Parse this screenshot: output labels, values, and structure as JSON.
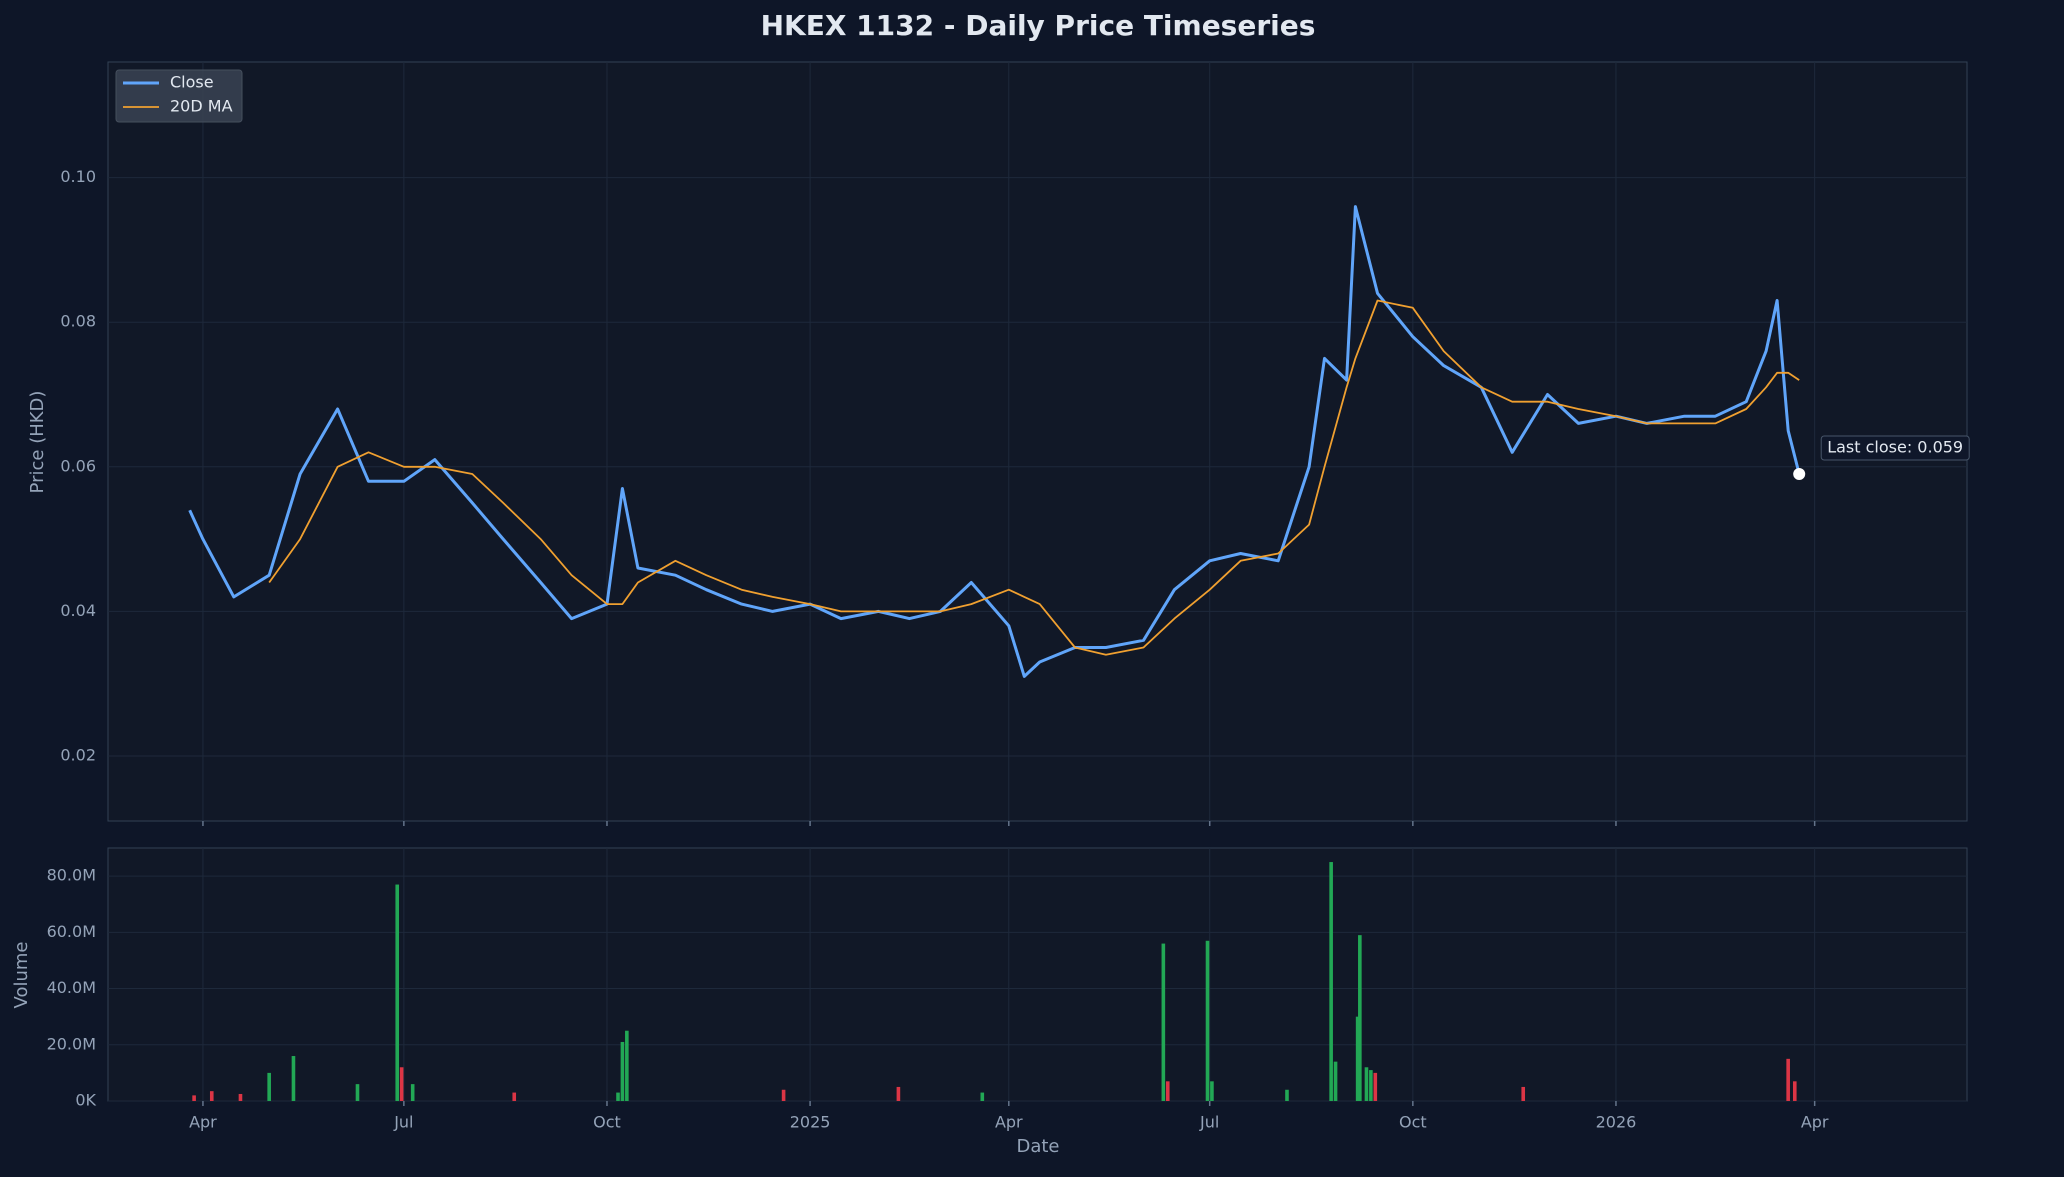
{
  "chart_data": [
    {
      "type": "line",
      "title": "HKEX 1132 - Daily Price Timeseries",
      "y_label": "Price (HKD)",
      "x": [
        "2024-03-26",
        "2024-04-01",
        "2024-04-15",
        "2024-05-01",
        "2024-05-15",
        "2024-06-01",
        "2024-06-15",
        "2024-07-01",
        "2024-07-15",
        "2024-08-01",
        "2024-08-15",
        "2024-09-01",
        "2024-09-15",
        "2024-10-01",
        "2024-10-08",
        "2024-10-15",
        "2024-11-01",
        "2024-11-15",
        "2024-12-01",
        "2024-12-15",
        "2025-01-01",
        "2025-01-15",
        "2025-02-01",
        "2025-02-15",
        "2025-03-01",
        "2025-03-15",
        "2025-04-01",
        "2025-04-08",
        "2025-04-15",
        "2025-05-01",
        "2025-05-15",
        "2025-06-01",
        "2025-06-15",
        "2025-07-01",
        "2025-07-15",
        "2025-08-01",
        "2025-08-15",
        "2025-08-22",
        "2025-09-01",
        "2025-09-05",
        "2025-09-15",
        "2025-10-01",
        "2025-10-15",
        "2025-11-01",
        "2025-11-15",
        "2025-12-01",
        "2025-12-15",
        "2026-01-01",
        "2026-01-15",
        "2026-02-01",
        "2026-02-15",
        "2026-03-01",
        "2026-03-10",
        "2026-03-15",
        "2026-03-20",
        "2026-03-25"
      ],
      "series": [
        {
          "name": "Close",
          "color": "#60a5fa",
          "width": 3,
          "values": [
            0.054,
            0.05,
            0.042,
            0.045,
            0.059,
            0.068,
            0.058,
            0.058,
            0.061,
            0.055,
            0.05,
            0.044,
            0.039,
            0.041,
            0.057,
            0.046,
            0.045,
            0.043,
            0.041,
            0.04,
            0.041,
            0.039,
            0.04,
            0.039,
            0.04,
            0.044,
            0.038,
            0.031,
            0.033,
            0.035,
            0.035,
            0.036,
            0.043,
            0.047,
            0.048,
            0.047,
            0.06,
            0.075,
            0.072,
            0.096,
            0.084,
            0.078,
            0.074,
            0.071,
            0.062,
            0.07,
            0.066,
            0.067,
            0.066,
            0.067,
            0.067,
            0.069,
            0.076,
            0.083,
            0.065,
            0.059
          ]
        },
        {
          "name": "20D MA",
          "color": "#f0a030",
          "width": 1.8,
          "values": [
            null,
            null,
            null,
            0.044,
            0.05,
            0.06,
            0.062,
            0.06,
            0.06,
            0.059,
            0.055,
            0.05,
            0.045,
            0.041,
            0.041,
            0.044,
            0.047,
            0.045,
            0.043,
            0.042,
            0.041,
            0.04,
            0.04,
            0.04,
            0.04,
            0.041,
            0.043,
            0.042,
            0.041,
            0.035,
            0.034,
            0.035,
            0.039,
            0.043,
            0.047,
            0.048,
            0.052,
            0.06,
            0.071,
            0.075,
            0.083,
            0.082,
            0.076,
            0.071,
            0.069,
            0.069,
            0.068,
            0.067,
            0.066,
            0.066,
            0.066,
            0.068,
            0.071,
            0.073,
            0.073,
            0.072
          ]
        }
      ],
      "annotation": "Last close: 0.059",
      "xlim": [
        "2024-02-18",
        "2026-06-09"
      ],
      "ylim": [
        0.011,
        0.116
      ],
      "yticks": [
        0.02,
        0.04,
        0.06,
        0.08,
        {
          "value": 0.1,
          "label": "0.10"
        }
      ],
      "grid": true,
      "legend": "upper left"
    },
    {
      "type": "bar",
      "y_label": "Volume",
      "x_label": "Date",
      "x": [
        "2024-03-28",
        "2024-04-05",
        "2024-04-18",
        "2024-05-01",
        "2024-05-12",
        "2024-06-10",
        "2024-06-28",
        "2024-06-30",
        "2024-07-05",
        "2024-08-20",
        "2024-10-06",
        "2024-10-08",
        "2024-10-10",
        "2024-12-20",
        "2025-02-10",
        "2025-03-20",
        "2025-06-10",
        "2025-06-12",
        "2025-06-30",
        "2025-07-02",
        "2025-08-05",
        "2025-08-25",
        "2025-08-27",
        "2025-09-06",
        "2025-09-07",
        "2025-09-10",
        "2025-09-12",
        "2025-09-14",
        "2025-11-20",
        "2026-03-20",
        "2026-03-23"
      ],
      "values": [
        2000000,
        3500000,
        2500000,
        10000000,
        16000000,
        6000000,
        77000000,
        12000000,
        6000000,
        3000000,
        3000000,
        21000000,
        25000000,
        4000000,
        5000000,
        3000000,
        56000000,
        7000000,
        57000000,
        7000000,
        4000000,
        85000000,
        14000000,
        30000000,
        59000000,
        12000000,
        11000000,
        10000000,
        5000000,
        15000000,
        7000000
      ],
      "colors": [
        "#dc3545",
        "#dc3545",
        "#dc3545",
        "#22a855",
        "#22a855",
        "#22a855",
        "#22a855",
        "#dc3545",
        "#22a855",
        "#dc3545",
        "#22a855",
        "#22a855",
        "#22a855",
        "#dc3545",
        "#dc3545",
        "#22a855",
        "#22a855",
        "#dc3545",
        "#22a855",
        "#22a855",
        "#22a855",
        "#22a855",
        "#22a855",
        "#22a855",
        "#22a855",
        "#22a855",
        "#22a855",
        "#dc3545",
        "#dc3545",
        "#dc3545",
        "#dc3545"
      ],
      "xlim": [
        "2024-02-18",
        "2026-06-09"
      ],
      "xticks": [
        {
          "value": "2024-04-01",
          "label": "Apr"
        },
        {
          "value": "2024-07-01",
          "label": "Jul"
        },
        {
          "value": "2024-10-01",
          "label": "Oct"
        },
        {
          "value": "2025-01-01",
          "label": "2025"
        },
        {
          "value": "2025-04-01",
          "label": "Apr"
        },
        {
          "value": "2025-07-01",
          "label": "Jul"
        },
        {
          "value": "2025-10-01",
          "label": "Oct"
        },
        {
          "value": "2026-01-01",
          "label": "2026"
        },
        {
          "value": "2026-04-01",
          "label": "Apr"
        }
      ],
      "ylim": [
        0,
        90000000
      ],
      "yticks": [
        {
          "value": 0,
          "label": "0K"
        },
        {
          "value": 20000000,
          "label": "20.0M"
        },
        {
          "value": 40000000,
          "label": "40.0M"
        },
        {
          "value": 60000000,
          "label": "60.0M"
        },
        {
          "value": 80000000,
          "label": "80.0M"
        }
      ],
      "grid": true
    }
  ]
}
